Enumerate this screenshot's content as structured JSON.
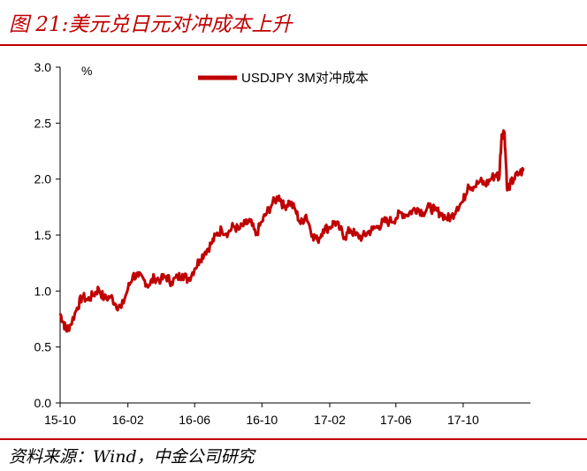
{
  "header": {
    "title": "图 21:美元兑日元对冲成本上升"
  },
  "footer": {
    "source": "资料来源：Wind，中金公司研究"
  },
  "colors": {
    "accent": "#c00000",
    "series": "#c00000"
  },
  "chart_data": {
    "type": "line",
    "title": "",
    "ylabel": "%",
    "xlabel": "",
    "ylim": [
      0,
      3
    ],
    "yticks": [
      "0.0",
      "0.5",
      "1.0",
      "1.5",
      "2.0",
      "2.5",
      "3.0"
    ],
    "xticks": [
      "15-10",
      "16-02",
      "16-06",
      "16-10",
      "17-02",
      "17-06",
      "17-10"
    ],
    "legend_position": "top-center",
    "grid": false,
    "series": [
      {
        "name": "USDJPY 3M对冲成本",
        "x": [
          "2015-10-01",
          "2015-10-07",
          "2015-10-12",
          "2015-10-20",
          "2015-11-01",
          "2015-11-10",
          "2015-11-20",
          "2015-12-01",
          "2015-12-10",
          "2015-12-20",
          "2016-01-01",
          "2016-01-10",
          "2016-01-20",
          "2016-02-01",
          "2016-02-10",
          "2016-02-20",
          "2016-03-01",
          "2016-03-10",
          "2016-03-20",
          "2016-04-01",
          "2016-04-10",
          "2016-04-20",
          "2016-05-01",
          "2016-05-10",
          "2016-05-20",
          "2016-06-01",
          "2016-06-10",
          "2016-06-20",
          "2016-07-01",
          "2016-07-10",
          "2016-07-20",
          "2016-08-01",
          "2016-08-10",
          "2016-08-20",
          "2016-09-01",
          "2016-09-10",
          "2016-09-20",
          "2016-10-01",
          "2016-10-10",
          "2016-10-20",
          "2016-11-01",
          "2016-11-10",
          "2016-11-20",
          "2016-12-01",
          "2016-12-10",
          "2016-12-20",
          "2017-01-01",
          "2017-01-10",
          "2017-01-20",
          "2017-02-01",
          "2017-02-10",
          "2017-02-20",
          "2017-03-01",
          "2017-03-10",
          "2017-03-20",
          "2017-04-01",
          "2017-04-10",
          "2017-04-20",
          "2017-05-01",
          "2017-05-10",
          "2017-05-20",
          "2017-06-01",
          "2017-06-10",
          "2017-06-20",
          "2017-07-01",
          "2017-07-10",
          "2017-07-20",
          "2017-08-01",
          "2017-08-10",
          "2017-08-20",
          "2017-09-01",
          "2017-09-10",
          "2017-09-20",
          "2017-10-01",
          "2017-10-10",
          "2017-10-20",
          "2017-11-01",
          "2017-11-10",
          "2017-11-20",
          "2017-12-01",
          "2017-12-05",
          "2017-12-10",
          "2017-12-15",
          "2017-12-20",
          "2017-12-25",
          "2018-01-01",
          "2018-01-10",
          "2018-01-20"
        ],
        "values": [
          0.8,
          0.72,
          0.65,
          0.7,
          0.85,
          0.95,
          0.92,
          0.97,
          1.02,
          0.93,
          0.95,
          0.88,
          0.85,
          1.02,
          1.14,
          1.13,
          1.1,
          1.05,
          1.12,
          1.1,
          1.13,
          1.08,
          1.12,
          1.15,
          1.1,
          1.2,
          1.28,
          1.35,
          1.42,
          1.5,
          1.55,
          1.52,
          1.58,
          1.55,
          1.6,
          1.62,
          1.5,
          1.62,
          1.7,
          1.78,
          1.85,
          1.75,
          1.8,
          1.72,
          1.6,
          1.68,
          1.5,
          1.45,
          1.55,
          1.57,
          1.62,
          1.55,
          1.48,
          1.55,
          1.5,
          1.48,
          1.52,
          1.55,
          1.58,
          1.62,
          1.62,
          1.65,
          1.7,
          1.68,
          1.72,
          1.74,
          1.7,
          1.75,
          1.72,
          1.7,
          1.65,
          1.66,
          1.75,
          1.8,
          1.95,
          1.93,
          1.98,
          1.95,
          2.0,
          2.05,
          2.0,
          2.4,
          2.42,
          1.9,
          1.95,
          2.0,
          2.05,
          2.08
        ]
      }
    ]
  }
}
